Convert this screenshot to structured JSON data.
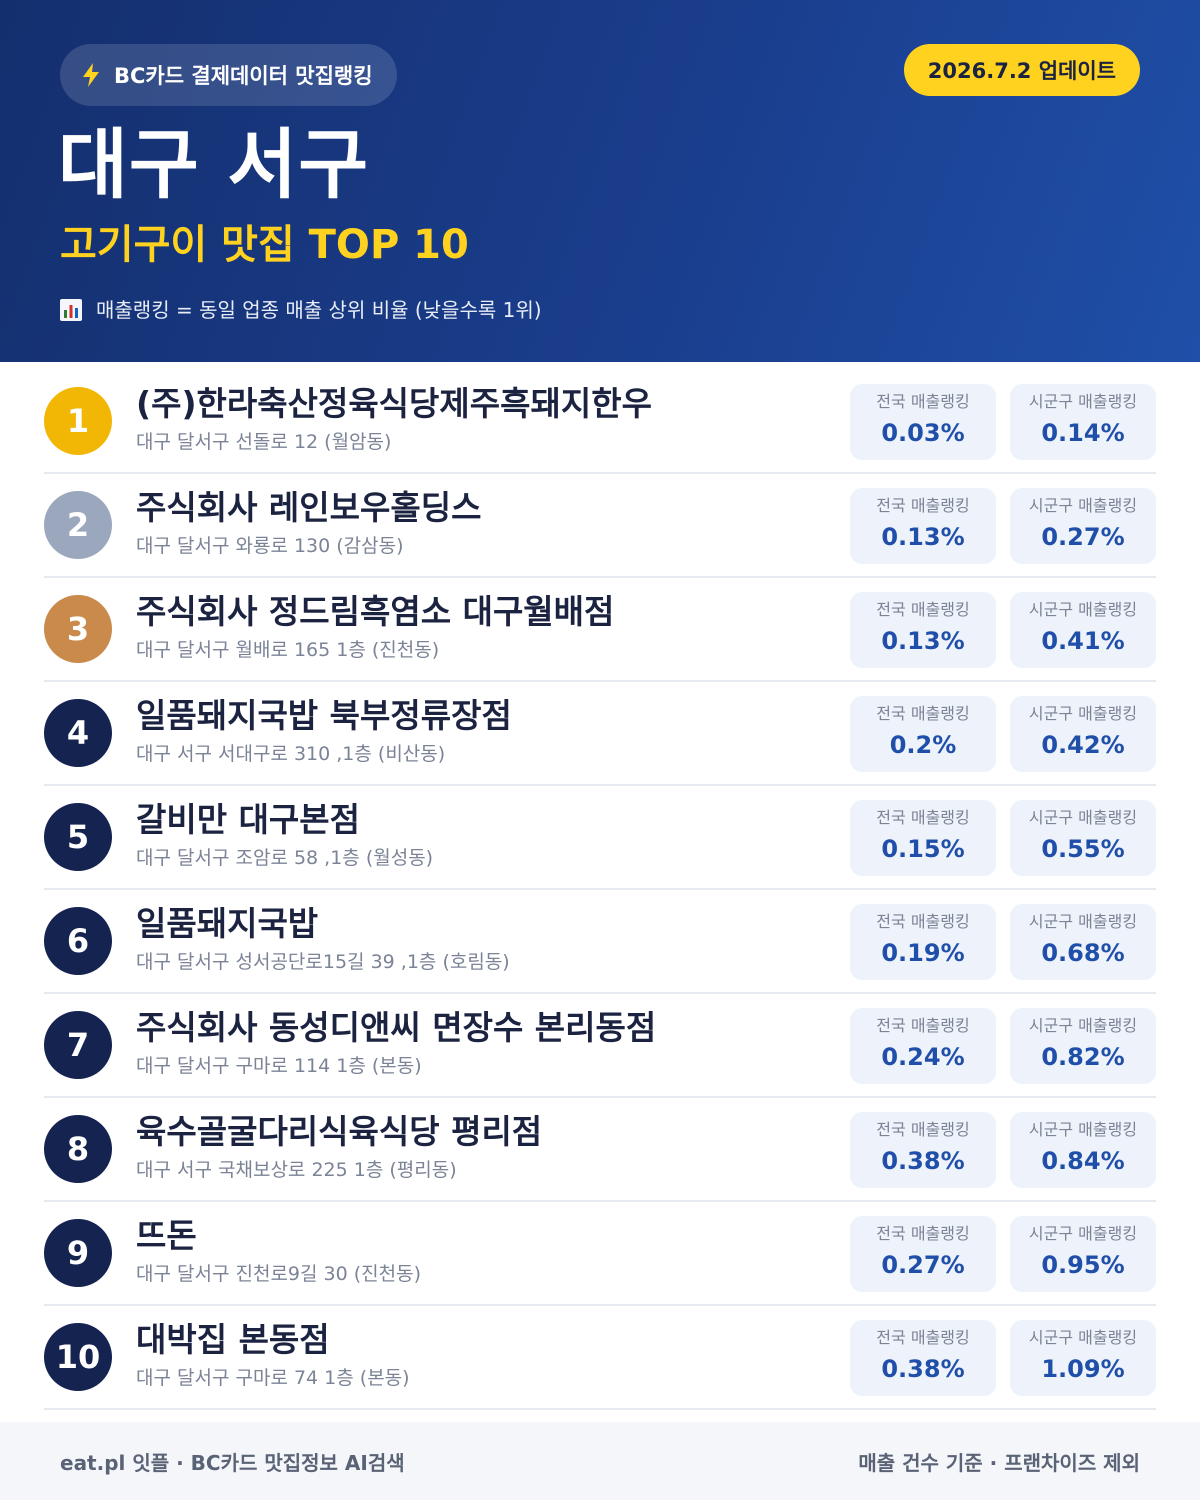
{
  "header": {
    "brand": "BC카드 결제데이터 맛집랭킹",
    "update": "2026.7.2 업데이트",
    "title": "대구 서구",
    "subtitle": "고기구이 맛집 TOP 10",
    "legend": "매출랭킹 = 동일 업종 매출 상위 비율 (낮을수록 1위)",
    "icons": {
      "brand": "lightning-bolt-icon",
      "legend": "bar-chart-icon"
    }
  },
  "colors": {
    "gold": "#f2b705",
    "silver": "#9aa7bd",
    "bronze": "#c98a4b",
    "navy": "#142350",
    "accent": "#ffd21f",
    "value": "#1f4fa8"
  },
  "labels": {
    "national": "전국 매출랭킹",
    "local": "시군구 매출랭킹"
  },
  "restaurants": [
    {
      "rank": "1",
      "name": "(주)한라축산정육식당제주흑돼지한우",
      "address": "대구 달서구 선돌로 12 (월암동)",
      "national": "0.03%",
      "local": "0.14%"
    },
    {
      "rank": "2",
      "name": "주식회사 레인보우홀딩스",
      "address": "대구 달서구 와룡로 130 (감삼동)",
      "national": "0.13%",
      "local": "0.27%"
    },
    {
      "rank": "3",
      "name": "주식회사 정드림흑염소 대구월배점",
      "address": "대구 달서구 월배로 165 1층 (진천동)",
      "national": "0.13%",
      "local": "0.41%"
    },
    {
      "rank": "4",
      "name": "일품돼지국밥 북부정류장점",
      "address": "대구 서구 서대구로 310 ,1층 (비산동)",
      "national": "0.2%",
      "local": "0.42%"
    },
    {
      "rank": "5",
      "name": "갈비만 대구본점",
      "address": "대구 달서구 조암로 58 ,1층 (월성동)",
      "national": "0.15%",
      "local": "0.55%"
    },
    {
      "rank": "6",
      "name": "일품돼지국밥",
      "address": "대구 달서구 성서공단로15길 39 ,1층 (호림동)",
      "national": "0.19%",
      "local": "0.68%"
    },
    {
      "rank": "7",
      "name": "주식회사 동성디앤씨 면장수 본리동점",
      "address": "대구 달서구 구마로 114 1층 (본동)",
      "national": "0.24%",
      "local": "0.82%"
    },
    {
      "rank": "8",
      "name": "육수골굴다리식육식당 평리점",
      "address": "대구 서구 국채보상로 225 1층 (평리동)",
      "national": "0.38%",
      "local": "0.84%"
    },
    {
      "rank": "9",
      "name": "뜨돈",
      "address": "대구 달서구 진천로9길 30 (진천동)",
      "national": "0.27%",
      "local": "0.95%"
    },
    {
      "rank": "10",
      "name": "대박집 본동점",
      "address": "대구 달서구 구마로 74 1층 (본동)",
      "national": "0.38%",
      "local": "1.09%"
    }
  ],
  "footer": {
    "left": "eat.pl 잇플 · BC카드 맛집정보 AI검색",
    "right": "매출 건수 기준 · 프랜차이즈 제외"
  }
}
